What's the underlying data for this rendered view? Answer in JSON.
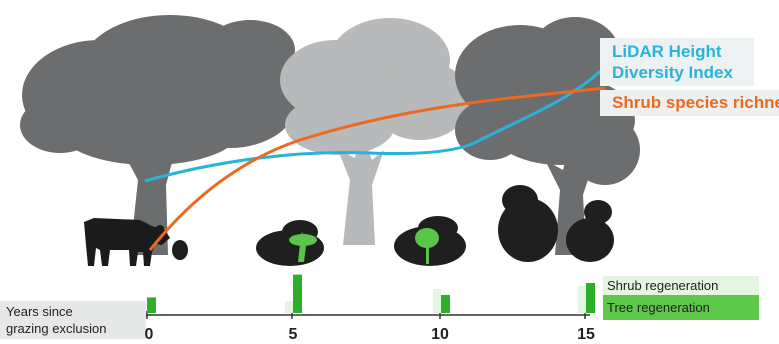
{
  "labels": {
    "lidar_line1": "LiDAR Height",
    "lidar_line2": "Diversity Index",
    "shrub_richness": "Shrub species richness",
    "shrub_regeneration": "Shrub regeneration",
    "tree_regeneration": "Tree regeneration",
    "years_line1": "Years since",
    "years_line2": "grazing exclusion"
  },
  "axis": {
    "ticks": [
      "0",
      "5",
      "10",
      "15"
    ]
  },
  "chart_data": {
    "type": "bar",
    "categories": [
      "0",
      "5",
      "10",
      "15"
    ],
    "series": [
      {
        "name": "Shrub regeneration",
        "values": [
          0,
          1,
          2,
          2.3
        ]
      },
      {
        "name": "Tree regeneration",
        "values": [
          1.3,
          3.2,
          1.5,
          2.5
        ]
      }
    ],
    "lines": [
      {
        "name": "LiDAR Height Diversity Index"
      },
      {
        "name": "Shrub species richness"
      }
    ]
  },
  "colors": {
    "lidar": "#2ab3d8",
    "richness": "#ea6a21",
    "shrub_bar": "#e4f6e1",
    "tree_bar": "#2fae2a",
    "tree_dark": "#6b6d6e",
    "tree_light": "#b7b9ba",
    "cow": "#1b1b1b"
  }
}
